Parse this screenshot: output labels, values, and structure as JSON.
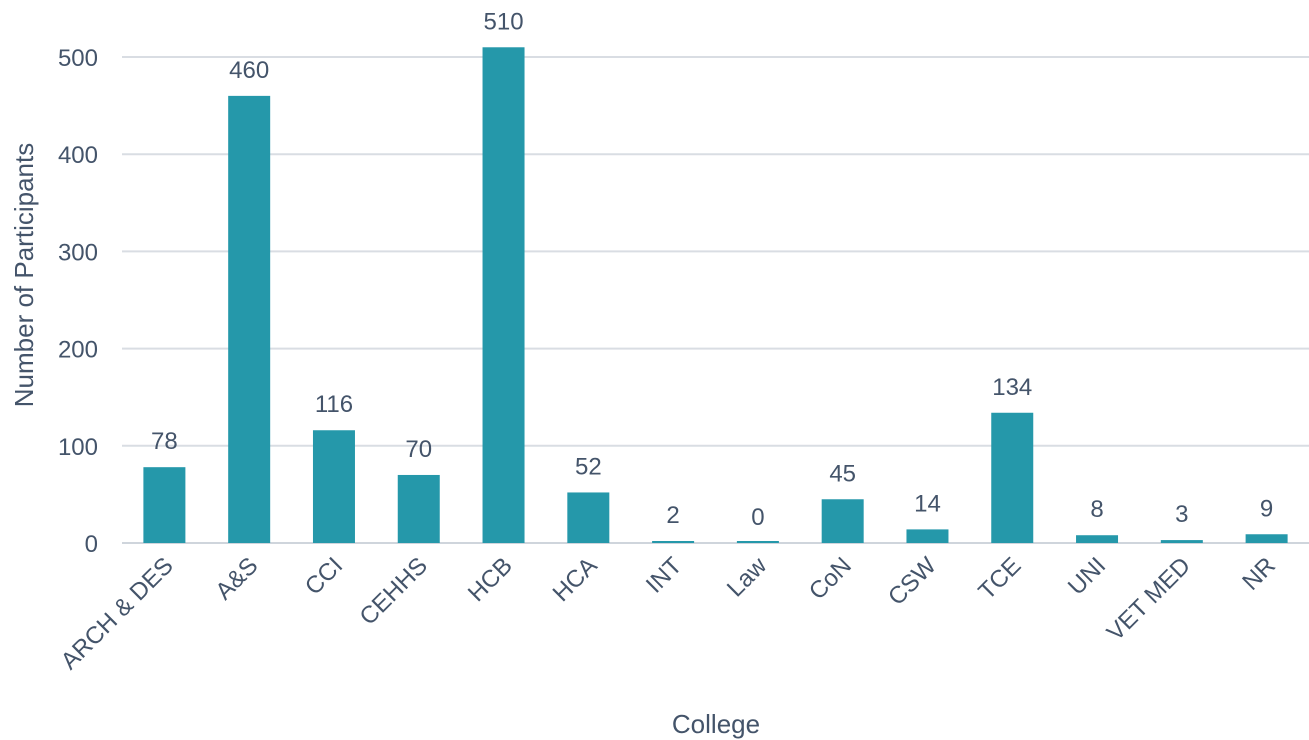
{
  "chart_data": {
    "type": "bar",
    "title": "",
    "xlabel": "College",
    "ylabel": "Number of Participants",
    "categories": [
      "ARCH & DES",
      "A&S",
      "CCI",
      "CEHHS",
      "HCB",
      "HCA",
      "INT",
      "Law",
      "CoN",
      "CSW",
      "TCE",
      "UNI",
      "VET MED",
      "NR"
    ],
    "values": [
      78,
      460,
      116,
      70,
      510,
      52,
      2,
      0,
      45,
      14,
      134,
      8,
      3,
      9
    ],
    "data_labels": [
      "78",
      "460",
      "116",
      "70",
      "510",
      "52",
      "2",
      "0",
      "45",
      "14",
      "134",
      "8",
      "3",
      "9"
    ],
    "ylim": [
      0,
      500
    ],
    "yticks": [
      0,
      100,
      200,
      300,
      400,
      500
    ],
    "ytick_labels": [
      "0",
      "100",
      "200",
      "300",
      "400",
      "500"
    ],
    "grid": true,
    "legend": "none",
    "colors": {
      "bar": "#2598aa",
      "text": "#44546a",
      "grid": "#d9dde3"
    }
  }
}
